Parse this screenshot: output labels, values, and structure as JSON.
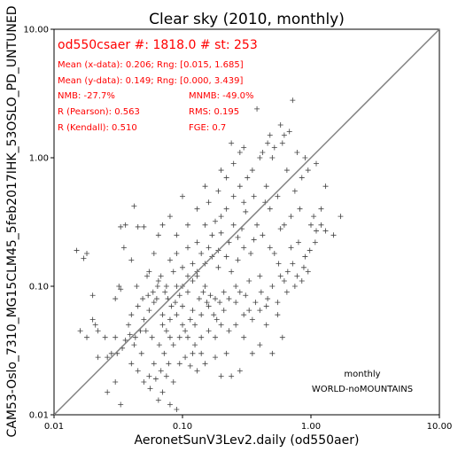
{
  "chart_data": {
    "type": "scatter",
    "title": "Clear sky (2010, monthly)",
    "xlabel": "AeronetSunV3Lev2.daily (od550aer)",
    "ylabel": "CAM53-Oslo_7310_MG15CLM45_5feb2017IHK_53OSLO_PD_UNTUNED",
    "x_scale": "log",
    "y_scale": "log",
    "xlim": [
      0.01,
      10.0
    ],
    "ylim": [
      0.01,
      10.0
    ],
    "x_ticks": [
      "0.01",
      "0.10",
      "1.00",
      "10.00"
    ],
    "y_ticks": [
      "0.01",
      "0.10",
      "1.00",
      "10.00"
    ],
    "x_tick_values": [
      0.01,
      0.1,
      1.0,
      10.0
    ],
    "y_tick_values": [
      0.01,
      0.1,
      1.0,
      10.0
    ],
    "reference_line": "y = x",
    "marker": "+",
    "marker_color": "#000000",
    "line_color": "#808080",
    "text_color": "#ff0000",
    "stats": {
      "headline": "od550csaer #: 1818.0 # st: 253",
      "mean_x": "Mean (x-data): 0.206; Rng: [0.015, 1.685]",
      "mean_y": "Mean (y-data): 0.149; Rng: [0.000, 3.439]",
      "nmb": "NMB: -27.7%",
      "mnmb": "MNMB: -49.0%",
      "r_pearson": "R (Pearson): 0.563",
      "rms": "RMS: 0.195",
      "r_kendall": "R (Kendall): 0.510",
      "fge": "FGE: 0.7"
    },
    "annotations": [
      "monthly",
      "WORLD-noMOUNTAINS"
    ],
    "series": [
      {
        "n_points": 1818,
        "points": [
          [
            0.015,
            0.19
          ],
          [
            0.017,
            0.165
          ],
          [
            0.018,
            0.18
          ],
          [
            0.02,
            0.085
          ],
          [
            0.02,
            0.055
          ],
          [
            0.021,
            0.05
          ],
          [
            0.016,
            0.045
          ],
          [
            0.018,
            0.04
          ],
          [
            0.022,
            0.045
          ],
          [
            0.025,
            0.04
          ],
          [
            0.022,
            0.028
          ],
          [
            0.026,
            0.028
          ],
          [
            0.03,
            0.04
          ],
          [
            0.032,
            0.1
          ],
          [
            0.033,
            0.095
          ],
          [
            0.03,
            0.08
          ],
          [
            0.028,
            0.03
          ],
          [
            0.03,
            0.018
          ],
          [
            0.026,
            0.015
          ],
          [
            0.033,
            0.012
          ],
          [
            0.035,
            0.2
          ],
          [
            0.04,
            0.16
          ],
          [
            0.042,
            0.42
          ],
          [
            0.045,
            0.29
          ],
          [
            0.05,
            0.29
          ],
          [
            0.053,
            0.12
          ],
          [
            0.055,
            0.13
          ],
          [
            0.06,
            0.18
          ],
          [
            0.033,
            0.29
          ],
          [
            0.036,
            0.3
          ],
          [
            0.063,
            0.08
          ],
          [
            0.065,
            0.11
          ],
          [
            0.07,
            0.05
          ],
          [
            0.075,
            0.045
          ],
          [
            0.06,
            0.025
          ],
          [
            0.055,
            0.02
          ],
          [
            0.07,
            0.015
          ],
          [
            0.08,
            0.012
          ],
          [
            0.065,
            0.013
          ],
          [
            0.09,
            0.011
          ],
          [
            0.08,
            0.04
          ],
          [
            0.1,
            0.05
          ],
          [
            0.11,
            0.04
          ],
          [
            0.12,
            0.03
          ],
          [
            0.13,
            0.022
          ],
          [
            0.15,
            0.025
          ],
          [
            0.14,
            0.03
          ],
          [
            0.18,
            0.028
          ],
          [
            0.2,
            0.02
          ],
          [
            0.24,
            0.02
          ],
          [
            0.22,
            0.03
          ],
          [
            0.28,
            0.022
          ],
          [
            0.3,
            0.04
          ],
          [
            0.35,
            0.03
          ],
          [
            0.4,
            0.035
          ],
          [
            0.5,
            0.03
          ],
          [
            0.45,
            0.05
          ],
          [
            0.55,
            0.06
          ],
          [
            0.6,
            0.04
          ],
          [
            0.62,
            0.11
          ],
          [
            0.7,
            0.2
          ],
          [
            0.8,
            0.22
          ],
          [
            0.9,
            0.17
          ],
          [
            1.0,
            0.3
          ],
          [
            1.1,
            0.27
          ],
          [
            1.2,
            0.3
          ],
          [
            1.3,
            0.27
          ],
          [
            1.5,
            0.25
          ],
          [
            1.7,
            0.35
          ],
          [
            1.2,
            0.4
          ],
          [
            1.3,
            0.6
          ],
          [
            1.05,
            0.35
          ],
          [
            0.95,
            0.8
          ],
          [
            0.85,
            0.7
          ],
          [
            0.75,
            0.55
          ],
          [
            0.65,
            0.8
          ],
          [
            0.6,
            1.3
          ],
          [
            0.55,
            0.5
          ],
          [
            0.45,
            0.6
          ],
          [
            0.5,
            1.0
          ],
          [
            0.4,
            1.0
          ],
          [
            0.35,
            0.8
          ],
          [
            0.32,
            0.7
          ],
          [
            0.3,
            0.45
          ],
          [
            0.28,
            0.6
          ],
          [
            0.25,
            0.5
          ],
          [
            0.22,
            0.4
          ],
          [
            0.2,
            0.35
          ],
          [
            0.38,
            0.3
          ],
          [
            0.42,
            0.25
          ],
          [
            0.48,
            0.2
          ],
          [
            0.52,
            0.18
          ],
          [
            0.56,
            0.15
          ],
          [
            0.4,
            0.12
          ],
          [
            0.33,
            0.11
          ],
          [
            0.26,
            0.1
          ],
          [
            0.21,
            0.09
          ],
          [
            0.18,
            0.08
          ],
          [
            0.16,
            0.07
          ],
          [
            0.14,
            0.06
          ],
          [
            0.12,
            0.065
          ],
          [
            0.1,
            0.07
          ],
          [
            0.09,
            0.06
          ],
          [
            0.08,
            0.055
          ],
          [
            0.07,
            0.06
          ],
          [
            0.15,
            0.1
          ],
          [
            0.13,
            0.12
          ],
          [
            0.11,
            0.09
          ],
          [
            0.09,
            0.1
          ],
          [
            0.085,
            0.13
          ],
          [
            0.1,
            0.14
          ],
          [
            0.12,
            0.15
          ],
          [
            0.14,
            0.18
          ],
          [
            0.16,
            0.2
          ],
          [
            0.17,
            0.25
          ],
          [
            0.19,
            0.14
          ],
          [
            0.22,
            0.17
          ],
          [
            0.24,
            0.13
          ],
          [
            0.27,
            0.16
          ],
          [
            0.3,
            0.2
          ],
          [
            0.34,
            0.18
          ],
          [
            0.36,
            0.23
          ],
          [
            0.29,
            0.28
          ],
          [
            0.25,
            0.3
          ],
          [
            0.2,
            0.26
          ],
          [
            0.18,
            0.32
          ],
          [
            0.15,
            0.3
          ],
          [
            0.13,
            0.22
          ],
          [
            0.11,
            0.2
          ],
          [
            0.09,
            0.18
          ],
          [
            0.08,
            0.16
          ],
          [
            0.075,
            0.1
          ],
          [
            0.06,
            0.075
          ],
          [
            0.055,
            0.065
          ],
          [
            0.05,
            0.055
          ],
          [
            0.045,
            0.07
          ],
          [
            0.04,
            0.06
          ],
          [
            0.038,
            0.05
          ],
          [
            0.042,
            0.035
          ],
          [
            0.048,
            0.03
          ],
          [
            0.052,
            0.045
          ],
          [
            0.058,
            0.04
          ],
          [
            0.066,
            0.035
          ],
          [
            0.072,
            0.03
          ],
          [
            0.078,
            0.025
          ],
          [
            0.085,
            0.035
          ],
          [
            0.095,
            0.04
          ],
          [
            0.105,
            0.045
          ],
          [
            0.115,
            0.055
          ],
          [
            0.125,
            0.05
          ],
          [
            0.135,
            0.08
          ],
          [
            0.145,
            0.09
          ],
          [
            0.155,
            0.075
          ],
          [
            0.165,
            0.085
          ],
          [
            0.175,
            0.06
          ],
          [
            0.185,
            0.055
          ],
          [
            0.195,
            0.075
          ],
          [
            0.21,
            0.065
          ],
          [
            0.23,
            0.08
          ],
          [
            0.26,
            0.075
          ],
          [
            0.28,
            0.09
          ],
          [
            0.31,
            0.085
          ],
          [
            0.33,
            0.065
          ],
          [
            0.37,
            0.075
          ],
          [
            0.41,
            0.09
          ],
          [
            0.46,
            0.08
          ],
          [
            0.5,
            0.1
          ],
          [
            0.58,
            0.12
          ],
          [
            0.66,
            0.13
          ],
          [
            0.72,
            0.15
          ],
          [
            0.78,
            0.12
          ],
          [
            0.88,
            0.14
          ],
          [
            0.98,
            0.19
          ],
          [
            1.08,
            0.22
          ],
          [
            0.82,
            0.4
          ],
          [
            0.7,
            0.35
          ],
          [
            0.62,
            0.3
          ],
          [
            0.58,
            0.28
          ],
          [
            0.48,
            0.4
          ],
          [
            0.44,
            0.45
          ],
          [
            0.36,
            0.5
          ],
          [
            0.31,
            0.38
          ],
          [
            0.27,
            0.24
          ],
          [
            0.23,
            0.22
          ],
          [
            0.19,
            0.19
          ],
          [
            0.17,
            0.17
          ],
          [
            0.15,
            0.15
          ],
          [
            0.13,
            0.13
          ],
          [
            0.12,
            0.11
          ],
          [
            0.11,
            0.12
          ],
          [
            0.1,
            0.1
          ],
          [
            0.095,
            0.085
          ],
          [
            0.088,
            0.075
          ],
          [
            0.082,
            0.07
          ],
          [
            0.077,
            0.08
          ],
          [
            0.073,
            0.09
          ],
          [
            0.068,
            0.12
          ],
          [
            0.064,
            0.1
          ],
          [
            0.059,
            0.09
          ],
          [
            0.054,
            0.085
          ],
          [
            0.049,
            0.08
          ],
          [
            0.044,
            0.1
          ],
          [
            0.047,
            0.045
          ],
          [
            0.043,
            0.04
          ],
          [
            0.039,
            0.042
          ],
          [
            0.036,
            0.038
          ],
          [
            0.034,
            0.033
          ],
          [
            0.031,
            0.03
          ],
          [
            0.04,
            0.025
          ],
          [
            0.045,
            0.022
          ],
          [
            0.05,
            0.018
          ],
          [
            0.056,
            0.016
          ],
          [
            0.062,
            0.019
          ],
          [
            0.068,
            0.022
          ],
          [
            0.075,
            0.02
          ],
          [
            0.085,
            0.018
          ],
          [
            0.095,
            0.025
          ],
          [
            0.105,
            0.028
          ],
          [
            0.115,
            0.024
          ],
          [
            0.125,
            0.035
          ],
          [
            0.14,
            0.04
          ],
          [
            0.16,
            0.045
          ],
          [
            0.18,
            0.04
          ],
          [
            0.2,
            0.05
          ],
          [
            0.23,
            0.045
          ],
          [
            0.26,
            0.05
          ],
          [
            0.3,
            0.06
          ],
          [
            0.35,
            0.055
          ],
          [
            0.4,
            0.065
          ],
          [
            0.45,
            0.07
          ],
          [
            0.55,
            0.075
          ],
          [
            0.65,
            0.09
          ],
          [
            0.75,
            0.1
          ],
          [
            0.85,
            0.11
          ],
          [
            0.95,
            0.13
          ],
          [
            0.38,
            2.4
          ],
          [
            0.72,
            2.8
          ],
          [
            0.58,
            1.8
          ],
          [
            0.62,
            1.5
          ],
          [
            0.68,
            1.6
          ],
          [
            0.48,
            1.5
          ],
          [
            0.52,
            1.2
          ],
          [
            0.46,
            1.3
          ],
          [
            0.42,
            1.1
          ],
          [
            0.9,
            1.0
          ],
          [
            1.1,
            0.9
          ],
          [
            0.78,
            1.1
          ],
          [
            0.3,
            1.2
          ],
          [
            0.2,
            0.8
          ],
          [
            0.15,
            0.6
          ],
          [
            0.1,
            0.5
          ],
          [
            0.08,
            0.35
          ],
          [
            0.07,
            0.3
          ],
          [
            0.065,
            0.25
          ],
          [
            0.09,
            0.25
          ],
          [
            0.11,
            0.3
          ],
          [
            0.13,
            0.4
          ],
          [
            0.16,
            0.45
          ],
          [
            0.19,
            0.55
          ],
          [
            0.22,
            0.7
          ],
          [
            0.25,
            0.9
          ],
          [
            0.28,
            1.1
          ],
          [
            0.24,
            1.3
          ]
        ]
      }
    ]
  }
}
